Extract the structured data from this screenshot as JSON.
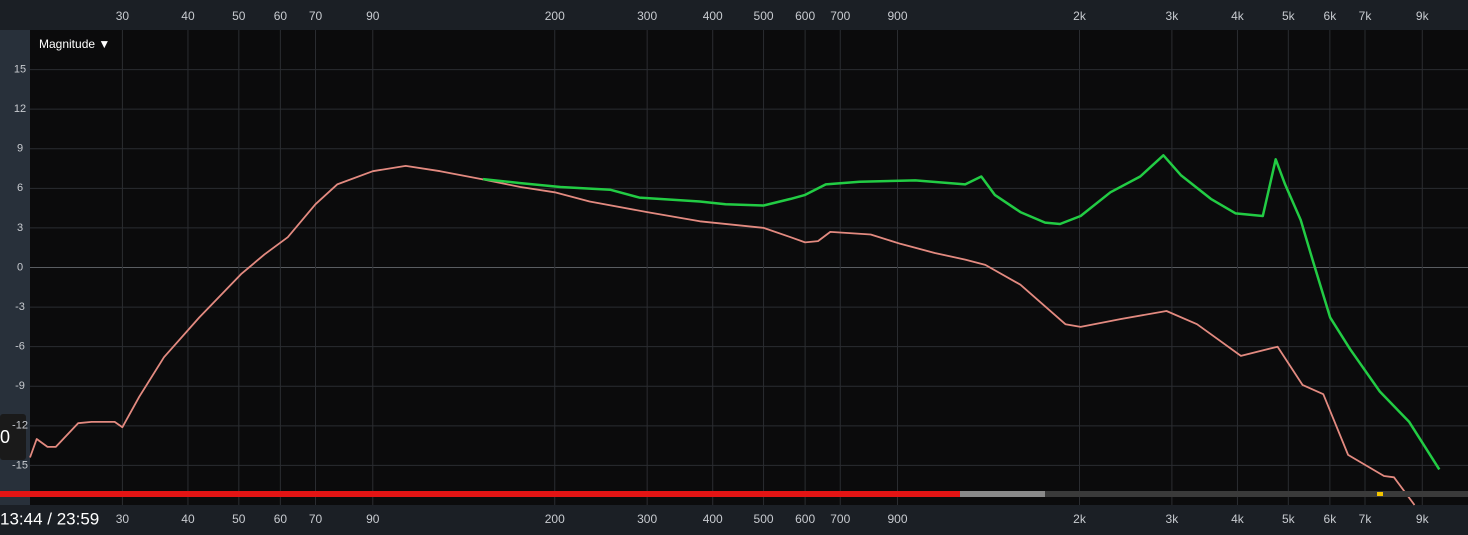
{
  "chart_data": {
    "type": "line",
    "ylabel": "Magnitude ▼",
    "log_x": true,
    "grid": true,
    "xlim": [
      20,
      11000
    ],
    "ylim": [
      -18,
      18
    ],
    "xticks": [
      30,
      40,
      50,
      60,
      70,
      90,
      200,
      300,
      400,
      500,
      600,
      700,
      900,
      {
        "value": 2000,
        "label": "2k"
      },
      {
        "value": 3000,
        "label": "3k"
      },
      {
        "value": 4000,
        "label": "4k"
      },
      {
        "value": 5000,
        "label": "5k"
      },
      {
        "value": 6000,
        "label": "6k"
      },
      {
        "value": 7000,
        "label": "7k"
      },
      {
        "value": 9000,
        "label": "9k"
      }
    ],
    "yticks": [
      15,
      12,
      9,
      6,
      3,
      0,
      -3,
      -6,
      -9,
      -12,
      -15
    ],
    "series": [
      {
        "color": "#e38a80",
        "x": [
          20,
          20.6,
          21.6,
          22.4,
          24.7,
          26.2,
          29,
          30,
          32.3,
          36,
          42,
          50.5,
          56,
          62,
          70,
          77,
          90,
          104,
          121,
          145,
          172,
          200,
          233,
          300,
          378,
          500,
          563,
          600,
          635,
          670,
          800,
          911,
          1060,
          1211,
          1323,
          1543,
          1880,
          2010,
          2400,
          2930,
          3350,
          4060,
          4770,
          5320,
          5830,
          6500,
          7610,
          7950,
          8700
        ],
        "values": [
          -14.4,
          -13.0,
          -13.6,
          -13.6,
          -11.8,
          -11.7,
          -11.7,
          -12.1,
          -9.8,
          -6.8,
          -3.8,
          -0.5,
          1.0,
          2.3,
          4.8,
          6.3,
          7.3,
          7.7,
          7.3,
          6.7,
          6.1,
          5.7,
          5.0,
          4.2,
          3.5,
          3.0,
          2.3,
          1.9,
          2.0,
          2.7,
          2.5,
          1.8,
          1.1,
          0.6,
          0.2,
          -1.3,
          -4.3,
          -4.5,
          -3.9,
          -3.3,
          -4.3,
          -6.7,
          -6.0,
          -8.9,
          -9.6,
          -14.2,
          -15.8,
          -15.9,
          -18.0
        ]
      },
      {
        "color": "#22cc44",
        "x": [
          146,
          172,
          205,
          255,
          290,
          378,
          423,
          500,
          563,
          600,
          657,
          762,
          973,
          1211,
          1300,
          1379,
          1543,
          1720,
          1836,
          2010,
          2290,
          2610,
          2890,
          3120,
          3560,
          3970,
          4470,
          4730,
          4930,
          5280,
          5560,
          6010,
          6560,
          7470,
          8500,
          9700
        ],
        "values": [
          6.7,
          6.4,
          6.1,
          5.9,
          5.3,
          5.0,
          4.8,
          4.7,
          5.2,
          5.5,
          6.3,
          6.5,
          6.6,
          6.3,
          6.9,
          5.5,
          4.2,
          3.4,
          3.3,
          3.9,
          5.7,
          6.9,
          8.5,
          7.0,
          5.2,
          4.1,
          3.9,
          8.2,
          6.3,
          3.6,
          0.6,
          -3.8,
          -6.2,
          -9.4,
          -11.7,
          -15.3
        ]
      }
    ]
  },
  "player": {
    "time": "13:44 / 23:59",
    "badge": "0"
  }
}
